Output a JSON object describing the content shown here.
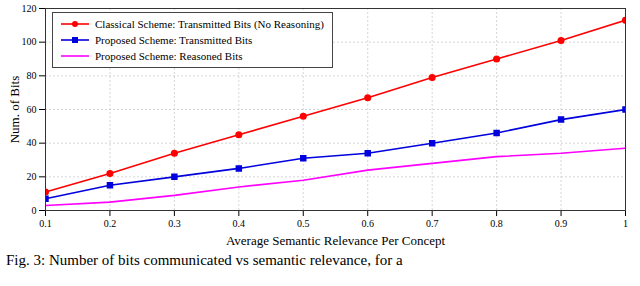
{
  "chart_data": {
    "type": "line",
    "caption": "Fig. 3: Number of bits communicated vs semantic relevance, for a",
    "x_label": "Average Semantic Relevance Per Concept",
    "y_label": "Num. of Bits",
    "x": [
      0.1,
      0.2,
      0.3,
      0.4,
      0.5,
      0.6,
      0.7,
      0.8,
      0.9,
      1
    ],
    "series": [
      {
        "name": "Classical Scheme: Transmitted Bits (No Reasoning)",
        "color": "#ff0000",
        "marker": "circle",
        "line_style": "solid",
        "values": [
          11,
          22,
          34,
          45,
          56,
          67,
          79,
          90,
          101,
          113
        ]
      },
      {
        "name": "Proposed Scheme: Transmitted Bits",
        "color": "#0000dd",
        "marker": "square",
        "line_style": "solid",
        "values": [
          7,
          15,
          20,
          25,
          31,
          34,
          40,
          46,
          54,
          60
        ]
      },
      {
        "name": "Proposed Scheme: Reasoned Bits",
        "color": "#ff00ff",
        "marker": "none",
        "line_style": "solid",
        "values": [
          3,
          5,
          9,
          14,
          18,
          24,
          28,
          32,
          34,
          37
        ]
      }
    ],
    "xlim": [
      0.1,
      1
    ],
    "xticks": [
      0.1,
      0.2,
      0.3,
      0.4,
      0.5,
      0.6,
      0.7,
      0.8,
      0.9,
      1
    ],
    "ylim": [
      0,
      120
    ],
    "yticks": [
      0,
      20,
      40,
      60,
      80,
      100,
      120
    ],
    "grid": true,
    "legend": "upper left"
  }
}
